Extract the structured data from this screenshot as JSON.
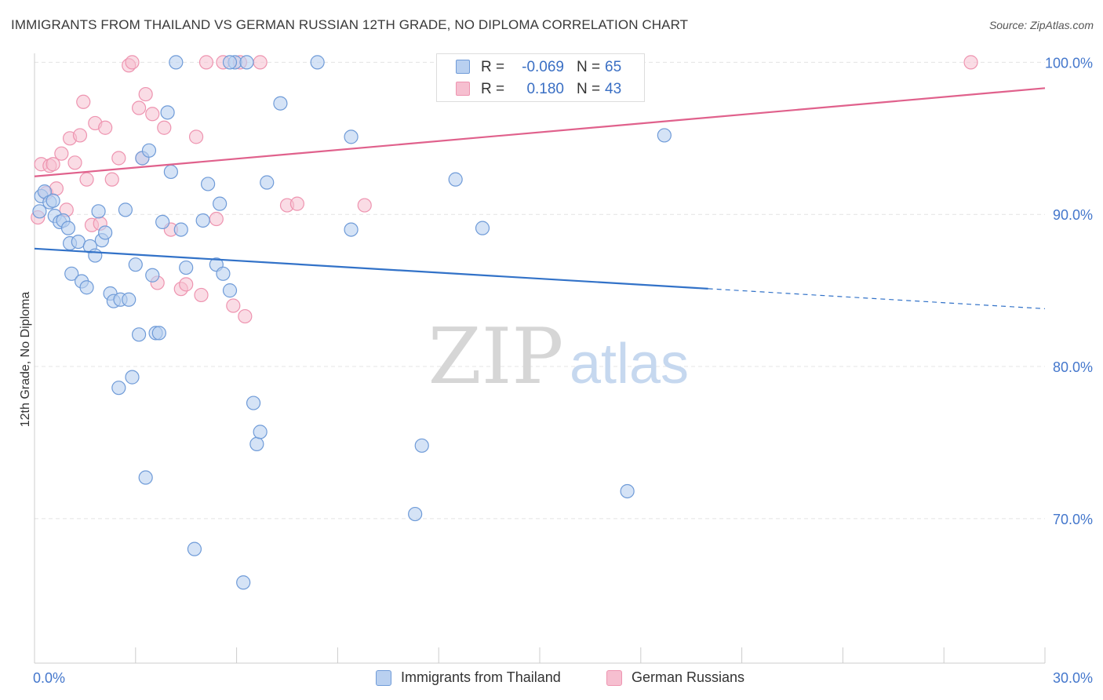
{
  "header": {
    "title": "IMMIGRANTS FROM THAILAND VS GERMAN RUSSIAN 12TH GRADE, NO DIPLOMA CORRELATION CHART",
    "source": "Source: ZipAtlas.com"
  },
  "watermark": {
    "zip": "ZIP",
    "atlas": "atlas"
  },
  "legend": {
    "r_label": "R =",
    "n_label": "N =",
    "rows": [
      {
        "r": "-0.069",
        "n": "65"
      },
      {
        "r": "0.180",
        "n": "43"
      }
    ]
  },
  "colors": {
    "series1_fill": "#b9d0f0",
    "series1_stroke": "#6f9bd8",
    "series1_line": "#3272c8",
    "series2_fill": "#f6bfd0",
    "series2_stroke": "#ee94b0",
    "series2_line": "#e0618c",
    "tick_label": "#4477cc",
    "grid": "#e4e4e4"
  },
  "chart_data": {
    "type": "scatter",
    "title": "IMMIGRANTS FROM THAILAND VS GERMAN RUSSIAN 12TH GRADE, NO DIPLOMA CORRELATION CHART",
    "xlabel": "",
    "ylabel": "12th Grade, No Diploma",
    "xlim": [
      0,
      30
    ],
    "ylim": [
      60.5,
      101
    ],
    "x_tick_labels": [
      {
        "value": 0,
        "label": "0.0%"
      },
      {
        "value": 30,
        "label": "30.0%"
      }
    ],
    "x_minor_ticks": [
      3,
      6,
      9,
      12,
      15,
      18,
      21,
      24,
      27,
      30
    ],
    "y_ticks": [
      {
        "value": 100,
        "label": "100.0%"
      },
      {
        "value": 90,
        "label": "90.0%"
      },
      {
        "value": 80,
        "label": "80.0%"
      },
      {
        "value": 70,
        "label": "70.0%"
      }
    ],
    "series": [
      {
        "name": "Immigrants from Thailand",
        "r": -0.069,
        "n": 65,
        "trend": {
          "x0": 0,
          "y0": 87.75,
          "x_solid_end": 20,
          "x1": 30,
          "y1": 83.8
        },
        "points": [
          [
            0.15,
            90.2
          ],
          [
            0.2,
            91.2
          ],
          [
            0.3,
            91.5
          ],
          [
            0.45,
            90.8
          ],
          [
            0.55,
            90.9
          ],
          [
            0.6,
            89.9
          ],
          [
            0.75,
            89.5
          ],
          [
            0.85,
            89.6
          ],
          [
            1.0,
            89.1
          ],
          [
            1.05,
            88.1
          ],
          [
            1.1,
            86.1
          ],
          [
            1.3,
            88.2
          ],
          [
            1.4,
            85.6
          ],
          [
            1.55,
            85.2
          ],
          [
            1.65,
            87.9
          ],
          [
            1.8,
            87.3
          ],
          [
            1.9,
            90.2
          ],
          [
            2.0,
            88.3
          ],
          [
            2.1,
            88.8
          ],
          [
            2.25,
            84.8
          ],
          [
            2.35,
            84.3
          ],
          [
            2.5,
            78.6
          ],
          [
            2.55,
            84.4
          ],
          [
            2.7,
            90.3
          ],
          [
            2.8,
            84.4
          ],
          [
            2.9,
            79.3
          ],
          [
            3.0,
            86.7
          ],
          [
            3.1,
            82.1
          ],
          [
            3.2,
            93.7
          ],
          [
            3.3,
            72.7
          ],
          [
            3.4,
            94.2
          ],
          [
            3.5,
            86.0
          ],
          [
            3.6,
            82.2
          ],
          [
            3.7,
            82.2
          ],
          [
            3.8,
            89.5
          ],
          [
            3.95,
            96.7
          ],
          [
            4.05,
            92.8
          ],
          [
            4.2,
            100.0
          ],
          [
            4.35,
            89.0
          ],
          [
            4.5,
            86.5
          ],
          [
            4.75,
            68.0
          ],
          [
            5.0,
            89.6
          ],
          [
            5.15,
            92.0
          ],
          [
            5.4,
            86.7
          ],
          [
            5.5,
            90.7
          ],
          [
            5.6,
            86.1
          ],
          [
            5.8,
            85.0
          ],
          [
            5.95,
            100.0
          ],
          [
            6.2,
            65.8
          ],
          [
            6.3,
            100.0
          ],
          [
            6.5,
            77.6
          ],
          [
            6.6,
            74.9
          ],
          [
            6.7,
            75.7
          ],
          [
            6.9,
            92.1
          ],
          [
            7.3,
            97.3
          ],
          [
            8.4,
            100.0
          ],
          [
            9.4,
            95.1
          ],
          [
            9.4,
            89.0
          ],
          [
            11.3,
            70.3
          ],
          [
            11.5,
            74.8
          ],
          [
            12.5,
            92.3
          ],
          [
            13.3,
            89.1
          ],
          [
            17.6,
            71.8
          ],
          [
            18.7,
            95.2
          ],
          [
            5.8,
            100.0
          ]
        ]
      },
      {
        "name": "German Russians",
        "r": 0.18,
        "n": 43,
        "trend": {
          "x0": 0,
          "y0": 92.5,
          "x1": 30,
          "y1": 98.3
        },
        "points": [
          [
            0.1,
            89.8
          ],
          [
            0.2,
            93.3
          ],
          [
            0.35,
            91.4
          ],
          [
            0.45,
            93.2
          ],
          [
            0.55,
            93.3
          ],
          [
            0.65,
            91.7
          ],
          [
            0.8,
            94.0
          ],
          [
            0.95,
            90.3
          ],
          [
            1.05,
            95.0
          ],
          [
            1.2,
            93.4
          ],
          [
            1.35,
            95.2
          ],
          [
            1.45,
            97.4
          ],
          [
            1.55,
            92.3
          ],
          [
            1.7,
            89.3
          ],
          [
            1.8,
            96.0
          ],
          [
            1.95,
            89.4
          ],
          [
            2.1,
            95.7
          ],
          [
            2.3,
            92.3
          ],
          [
            2.5,
            93.7
          ],
          [
            2.8,
            99.8
          ],
          [
            2.9,
            100.0
          ],
          [
            3.1,
            97.0
          ],
          [
            3.2,
            93.7
          ],
          [
            3.3,
            97.9
          ],
          [
            3.5,
            96.6
          ],
          [
            3.65,
            85.5
          ],
          [
            3.85,
            95.7
          ],
          [
            4.05,
            89.0
          ],
          [
            4.35,
            85.1
          ],
          [
            4.5,
            85.4
          ],
          [
            4.8,
            95.1
          ],
          [
            4.95,
            84.7
          ],
          [
            5.1,
            100.0
          ],
          [
            5.4,
            89.7
          ],
          [
            5.6,
            100.0
          ],
          [
            5.9,
            84.0
          ],
          [
            6.1,
            100.0
          ],
          [
            6.25,
            83.3
          ],
          [
            6.7,
            100.0
          ],
          [
            7.5,
            90.6
          ],
          [
            7.8,
            90.7
          ],
          [
            9.8,
            90.6
          ],
          [
            27.8,
            100.0
          ]
        ]
      }
    ]
  },
  "bottom_legend": [
    {
      "label": "Immigrants from Thailand"
    },
    {
      "label": "German Russians"
    }
  ]
}
